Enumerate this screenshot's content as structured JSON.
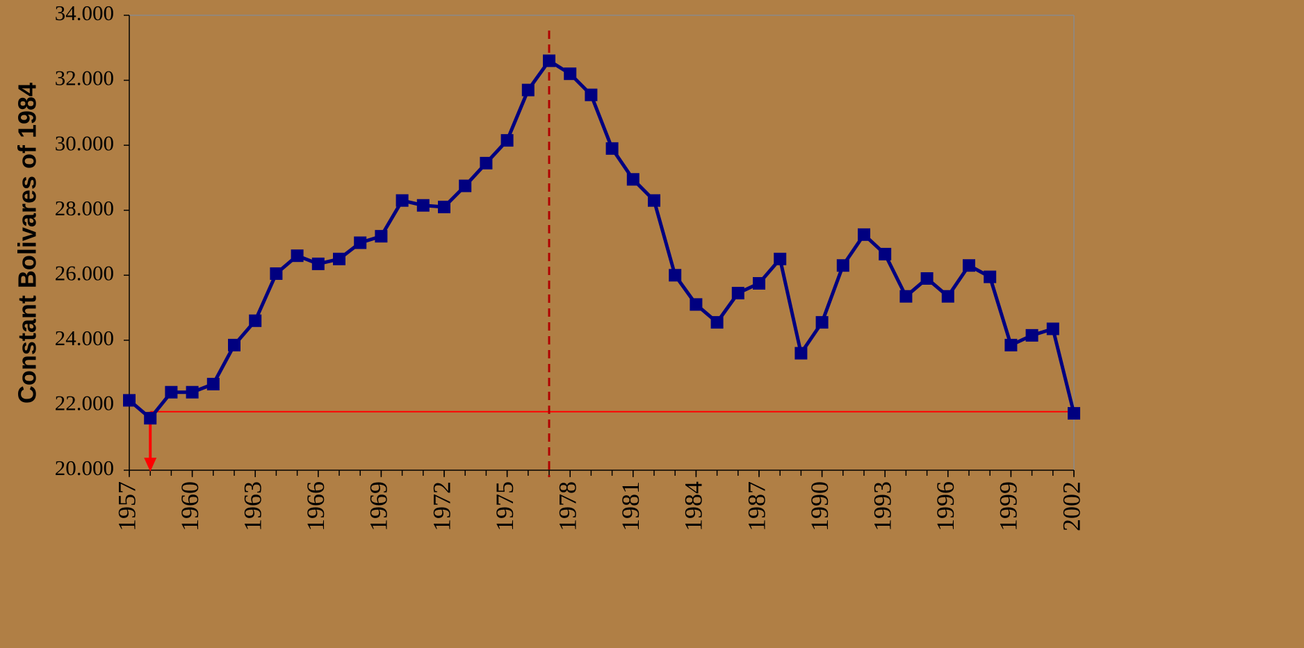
{
  "chart_data": {
    "type": "line",
    "y_axis_label": "Constant Bolivares of 1984",
    "x": [
      1957,
      1958,
      1959,
      1960,
      1961,
      1962,
      1963,
      1964,
      1965,
      1966,
      1967,
      1968,
      1969,
      1970,
      1971,
      1972,
      1973,
      1974,
      1975,
      1976,
      1977,
      1978,
      1979,
      1980,
      1981,
      1982,
      1983,
      1984,
      1985,
      1986,
      1987,
      1988,
      1989,
      1990,
      1991,
      1992,
      1993,
      1994,
      1995,
      1996,
      1997,
      1998,
      1999,
      2000,
      2001,
      2002
    ],
    "series": [
      {
        "color": "#000080",
        "values": [
          22150,
          21600,
          22400,
          22400,
          22650,
          23850,
          24600,
          26050,
          26600,
          26350,
          26500,
          27000,
          27200,
          28300,
          28150,
          28100,
          28750,
          29450,
          30150,
          31700,
          32600,
          32200,
          31550,
          29900,
          28950,
          28300,
          26000,
          25100,
          24550,
          25450,
          25750,
          26500,
          23600,
          24550,
          26300,
          27250,
          26650,
          25350,
          25900,
          25350,
          26300,
          25950,
          23850,
          24150,
          24350,
          21750
        ]
      }
    ],
    "xlim": [
      1957,
      2002
    ],
    "xticks": [
      1957,
      1960,
      1963,
      1966,
      1969,
      1972,
      1975,
      1978,
      1981,
      1984,
      1987,
      1990,
      1993,
      1996,
      1999,
      2002
    ],
    "ylim": [
      20000,
      34000
    ],
    "yticks": [
      {
        "value": 20000,
        "label": "20.000"
      },
      {
        "value": 22000,
        "label": "22.000"
      },
      {
        "value": 24000,
        "label": "24.000"
      },
      {
        "value": 26000,
        "label": "26.000"
      },
      {
        "value": 28000,
        "label": "28.000"
      },
      {
        "value": 30000,
        "label": "30.000"
      },
      {
        "value": 32000,
        "label": "32.000"
      },
      {
        "value": 34000,
        "label": "34.000"
      }
    ],
    "reference_hline": {
      "y": 21800,
      "x_start": 1958,
      "color": "#ff0000"
    },
    "reference_vline": {
      "x": 1977,
      "color": "#b00000"
    }
  }
}
